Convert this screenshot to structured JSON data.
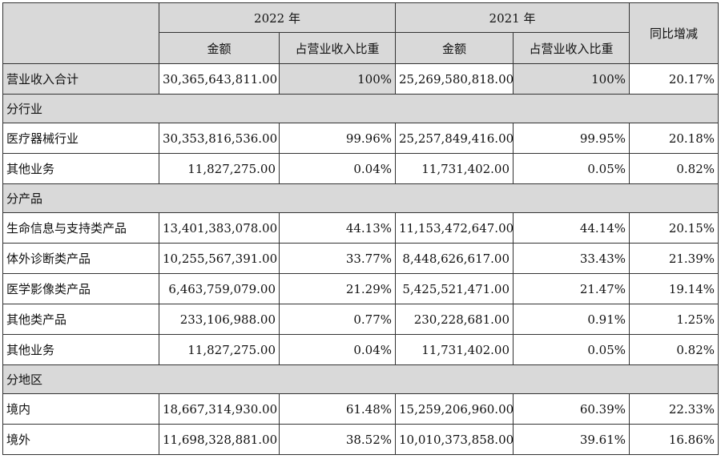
{
  "header": {
    "year_2022": "2022 年",
    "year_2021": "2021 年",
    "yoy": "同比增减",
    "amount": "金额",
    "share": "占营业收入比重"
  },
  "total": {
    "label": "营业收入合计",
    "amt2022": "30,365,643,811.00",
    "pct2022": "100%",
    "amt2021": "25,269,580,818.00",
    "pct2021": "100%",
    "yoy": "20.17%"
  },
  "sections": [
    {
      "title": "分行业",
      "rows": [
        {
          "label": "医疗器械行业",
          "amt2022": "30,353,816,536.00",
          "pct2022": "99.96%",
          "amt2021": "25,257,849,416.00",
          "pct2021": "99.95%",
          "yoy": "20.18%"
        },
        {
          "label": "其他业务",
          "amt2022": "11,827,275.00",
          "pct2022": "0.04%",
          "amt2021": "11,731,402.00",
          "pct2021": "0.05%",
          "yoy": "0.82%"
        }
      ]
    },
    {
      "title": "分产品",
      "rows": [
        {
          "label": "生命信息与支持类产品",
          "amt2022": "13,401,383,078.00",
          "pct2022": "44.13%",
          "amt2021": "11,153,472,647.00",
          "pct2021": "44.14%",
          "yoy": "20.15%"
        },
        {
          "label": "体外诊断类产品",
          "amt2022": "10,255,567,391.00",
          "pct2022": "33.77%",
          "amt2021": "8,448,626,617.00",
          "pct2021": "33.43%",
          "yoy": "21.39%"
        },
        {
          "label": "医学影像类产品",
          "amt2022": "6,463,759,079.00",
          "pct2022": "21.29%",
          "amt2021": "5,425,521,471.00",
          "pct2021": "21.47%",
          "yoy": "19.14%"
        },
        {
          "label": "其他类产品",
          "amt2022": "233,106,988.00",
          "pct2022": "0.77%",
          "amt2021": "230,228,681.00",
          "pct2021": "0.91%",
          "yoy": "1.25%"
        },
        {
          "label": "其他业务",
          "amt2022": "11,827,275.00",
          "pct2022": "0.04%",
          "amt2021": "11,731,402.00",
          "pct2021": "0.05%",
          "yoy": "0.82%"
        }
      ]
    },
    {
      "title": "分地区",
      "rows": [
        {
          "label": "境内",
          "amt2022": "18,667,314,930.00",
          "pct2022": "61.48%",
          "amt2021": "15,259,206,960.00",
          "pct2021": "60.39%",
          "yoy": "22.33%"
        },
        {
          "label": "境外",
          "amt2022": "11,698,328,881.00",
          "pct2022": "38.52%",
          "amt2021": "10,010,373,858.00",
          "pct2021": "39.61%",
          "yoy": "16.86%"
        }
      ]
    }
  ]
}
